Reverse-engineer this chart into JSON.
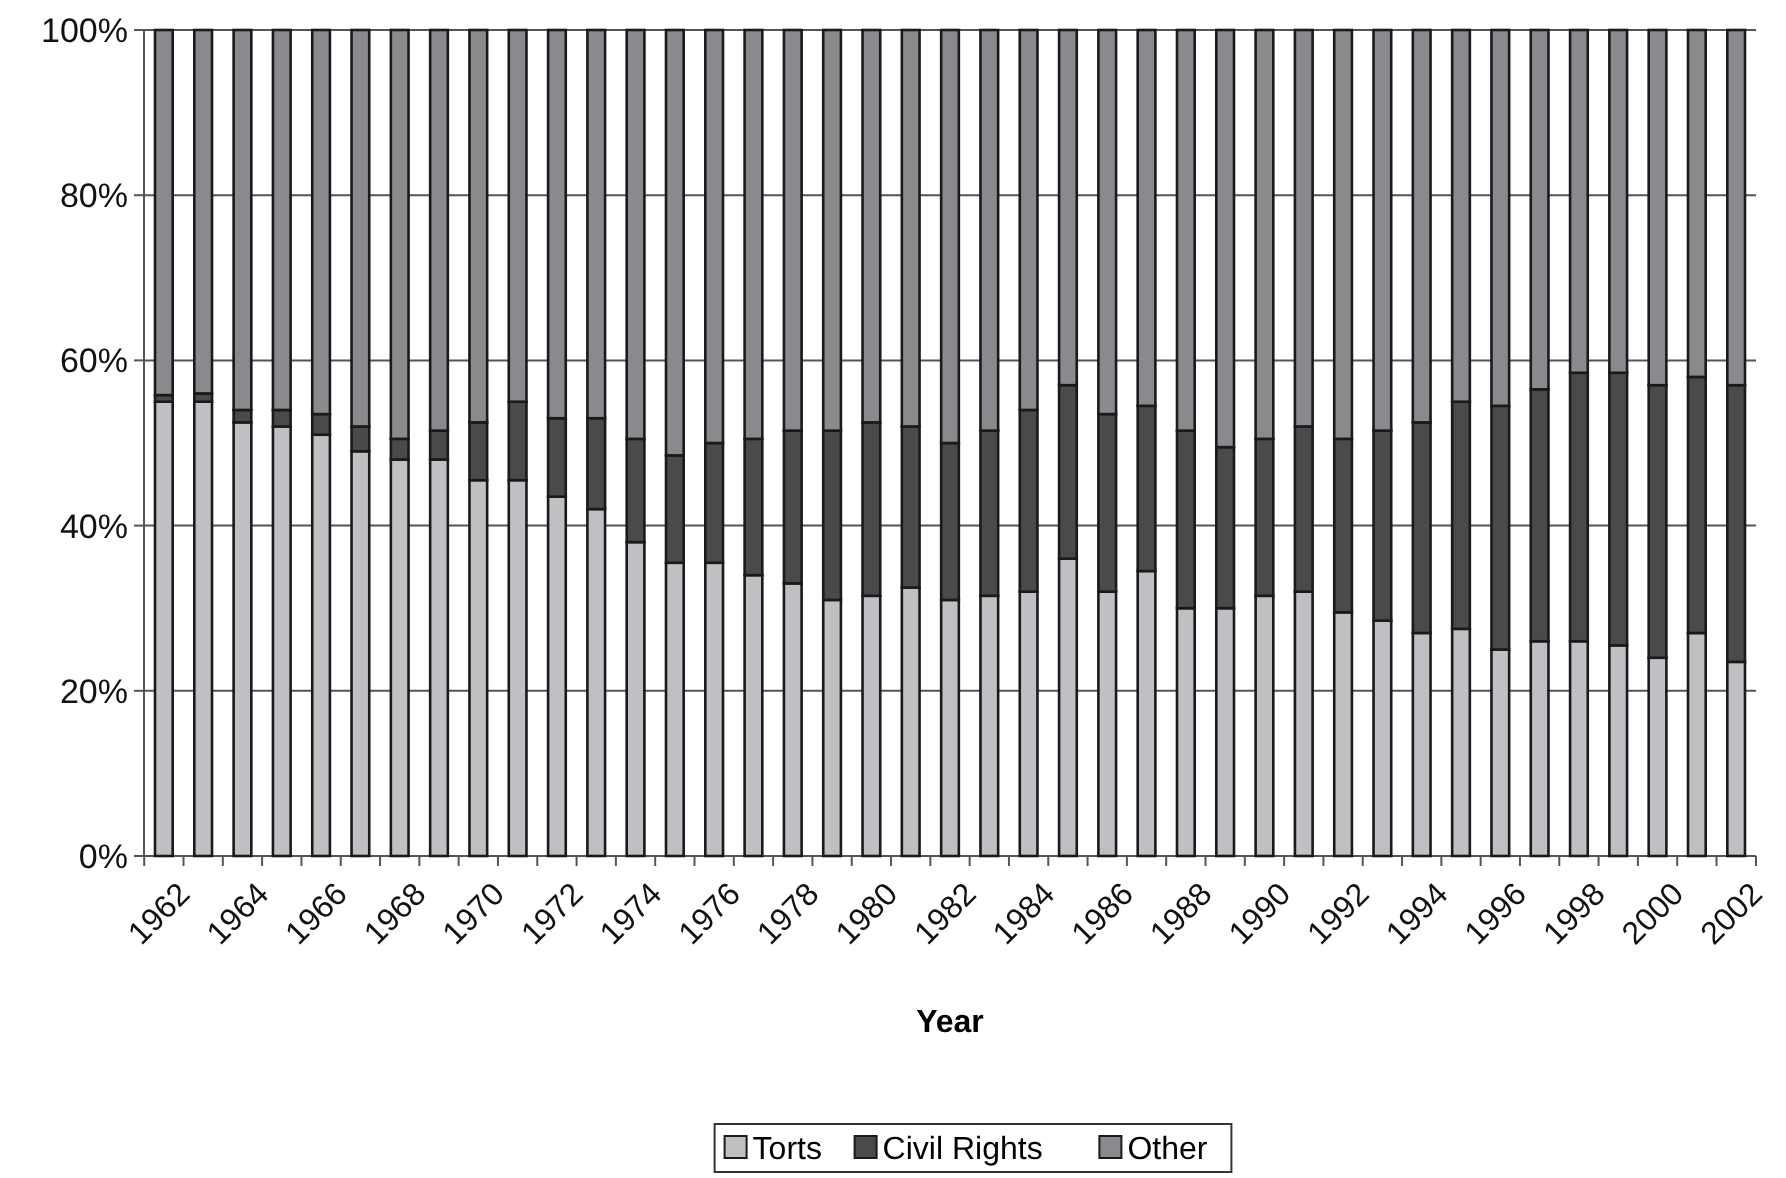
{
  "chart_data": {
    "type": "bar",
    "stacked": true,
    "xlabel": "Year",
    "categories": [
      "1962",
      null,
      "1964",
      null,
      "1966",
      null,
      "1968",
      null,
      "1970",
      null,
      "1972",
      null,
      "1974",
      null,
      "1976",
      null,
      "1978",
      null,
      "1980",
      null,
      "1982",
      null,
      "1984",
      null,
      "1986",
      null,
      "1988",
      null,
      "1990",
      null,
      "1992",
      null,
      "1994",
      null,
      "1996",
      null,
      "1998",
      null,
      "2000",
      null,
      "2002"
    ],
    "series": [
      {
        "name": "Torts",
        "color": "#c0c0c4",
        "values": [
          55,
          55,
          52.5,
          52,
          51,
          49,
          48,
          48,
          45.5,
          45.5,
          43.5,
          42,
          38,
          35.5,
          35.5,
          34,
          33,
          31,
          31.5,
          32.5,
          31,
          31.5,
          32,
          36,
          32,
          34.5,
          30,
          30,
          31.5,
          32,
          29.5,
          28.5,
          27,
          27.5,
          25,
          26,
          26,
          25.5,
          24,
          27,
          23.5
        ]
      },
      {
        "name": "Civil Rights",
        "color": "#4a4a4a",
        "values": [
          0.8,
          1,
          1.5,
          2,
          2.5,
          3,
          2.5,
          3.5,
          7,
          9.5,
          9.5,
          11,
          12.5,
          13,
          14.5,
          16.5,
          18.5,
          20.5,
          21,
          19.5,
          19,
          20,
          22,
          21,
          21.5,
          20,
          21.5,
          19.5,
          19,
          20,
          21,
          23,
          25.5,
          27.5,
          29.5,
          30.5,
          32.5,
          33,
          33,
          31,
          33.5
        ]
      },
      {
        "name": "Other",
        "color": "#8a8a8e",
        "values": [
          44.2,
          44,
          46,
          46,
          46.5,
          48,
          49.5,
          48.5,
          47.5,
          45,
          47,
          47,
          49.5,
          51.5,
          50,
          49.5,
          48.5,
          48.5,
          47.5,
          48,
          50,
          48.5,
          46,
          43,
          46.5,
          45.5,
          48.5,
          50.5,
          49.5,
          48,
          49.5,
          48.5,
          47.5,
          45,
          45.5,
          43.5,
          41.5,
          41.5,
          43,
          42,
          43
        ]
      }
    ],
    "ylim": [
      0,
      100
    ],
    "yticks": [
      {
        "value": 0,
        "label": "0%"
      },
      {
        "value": 20,
        "label": "20%"
      },
      {
        "value": 40,
        "label": "40%"
      },
      {
        "value": 60,
        "label": "60%"
      },
      {
        "value": 80,
        "label": "80%"
      },
      {
        "value": 100,
        "label": "100%"
      }
    ],
    "grid": "y",
    "legend": "bottom"
  }
}
